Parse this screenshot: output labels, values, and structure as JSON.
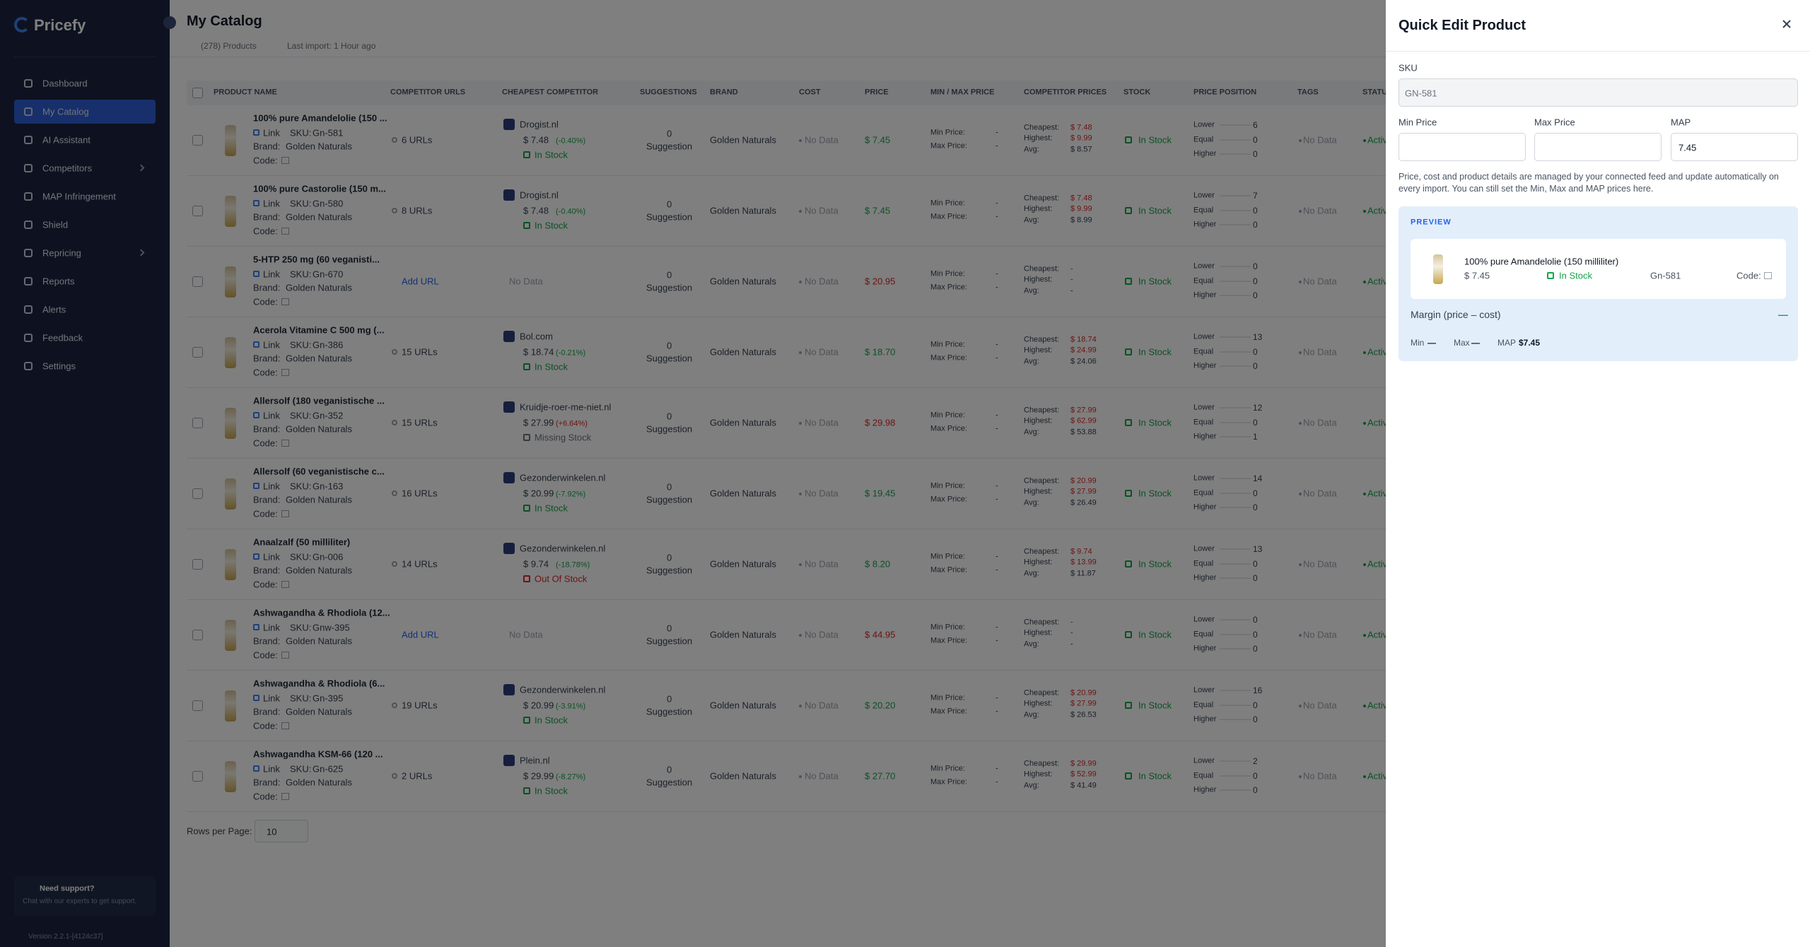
{
  "sidebar": {
    "brand": "Pricefy",
    "nav": [
      {
        "label": "Dashboard"
      },
      {
        "label": "My Catalog",
        "active": true
      },
      {
        "label": "AI Assistant"
      },
      {
        "label": "Competitors",
        "expandable": true
      },
      {
        "label": "MAP Infringement"
      },
      {
        "label": "Shield"
      },
      {
        "label": "Repricing",
        "expandable": true
      },
      {
        "label": "Reports"
      },
      {
        "label": "Alerts"
      },
      {
        "label": "Feedback"
      },
      {
        "label": "Settings"
      }
    ],
    "support_title": "Need support?",
    "support_text": "Chat with our experts to get support.",
    "version": "Version 2.2.1-[4124c37]"
  },
  "header": {
    "title": "My Catalog",
    "products": "(278) Products",
    "last_import": "Last import: 1 Hour ago"
  },
  "table": {
    "columns": [
      "PRODUCT NAME",
      "COMPETITOR URLS",
      "CHEAPEST COMPETITOR",
      "SUGGESTIONS",
      "BRAND",
      "COST",
      "PRICE",
      "MIN / MAX PRICE",
      "COMPETITOR PRICES",
      "STOCK",
      "PRICE POSITION",
      "TAGS",
      "STATUS"
    ],
    "labels": {
      "link": "Link",
      "sku": "SKU:",
      "brand": "Brand:",
      "code": "Code:",
      "suggestion": "Suggestion",
      "no_data": "No Data",
      "min_price": "Min Price:",
      "max_price": "Max Price:",
      "cheapest": "Cheapest:",
      "highest": "Highest:",
      "avg": "Avg:",
      "lower": "Lower",
      "equal": "Equal",
      "higher": "Higher"
    },
    "rows": [
      {
        "name": "100% pure Amandelolie (150 ...",
        "sku": "Gn-581",
        "brand": "Golden Naturals",
        "urls": "6 URLs",
        "competitor": "Drogist.nl",
        "comp_price": "$ 7.48",
        "comp_change": "(-0.40%)",
        "comp_change_color": "#16a34a",
        "comp_stock": "In Stock",
        "comp_stock_color": "#16a34a",
        "suggestions": "0",
        "cost": "No Data",
        "price": "$ 7.45",
        "price_color": "#16a34a",
        "min": "-",
        "max": "-",
        "cheapest": "$ 7.48",
        "highest": "$ 9.99",
        "avg": "$ 8.57",
        "stock": "In Stock",
        "lower": "6",
        "equal": "0",
        "higher": "0",
        "tags": "No Data",
        "status": "Active"
      },
      {
        "name": "100% pure Castorolie (150 m...",
        "sku": "Gn-580",
        "brand": "Golden Naturals",
        "urls": "8 URLs",
        "competitor": "Drogist.nl",
        "comp_price": "$ 7.48",
        "comp_change": "(-0.40%)",
        "comp_change_color": "#16a34a",
        "comp_stock": "In Stock",
        "comp_stock_color": "#16a34a",
        "suggestions": "0",
        "cost": "No Data",
        "price": "$ 7.45",
        "price_color": "#16a34a",
        "min": "-",
        "max": "-",
        "cheapest": "$ 7.48",
        "highest": "$ 9.99",
        "avg": "$ 8.99",
        "stock": "In Stock",
        "lower": "7",
        "equal": "0",
        "higher": "0",
        "tags": "No Data",
        "status": "Active"
      },
      {
        "name": "5-HTP 250 mg (60 veganisti...",
        "sku": "Gn-670",
        "brand": "Golden Naturals",
        "urls": "Add URL",
        "competitor": "No Data",
        "suggestions": "0",
        "cost": "No Data",
        "price": "$ 20.95",
        "price_color": "#dc2626",
        "min": "-",
        "max": "-",
        "cheapest": "-",
        "highest": "-",
        "avg": "-",
        "stock": "In Stock",
        "lower": "0",
        "equal": "0",
        "higher": "0",
        "tags": "No Data",
        "status": "Active"
      },
      {
        "name": "Acerola Vitamine C 500 mg (...",
        "sku": "Gn-386",
        "brand": "Golden Naturals",
        "urls": "15 URLs",
        "competitor": "Bol.com",
        "comp_price": "$ 18.74",
        "comp_change": "(-0.21%)",
        "comp_change_color": "#16a34a",
        "comp_stock": "In Stock",
        "comp_stock_color": "#16a34a",
        "suggestions": "0",
        "cost": "No Data",
        "price": "$ 18.70",
        "price_color": "#16a34a",
        "min": "-",
        "max": "-",
        "cheapest": "$ 18.74",
        "highest": "$ 24.99",
        "avg": "$ 24.06",
        "stock": "In Stock",
        "lower": "13",
        "equal": "0",
        "higher": "0",
        "tags": "No Data",
        "status": "Active"
      },
      {
        "name": "Allersolf (180 veganistische ...",
        "sku": "Gn-352",
        "brand": "Golden Naturals",
        "urls": "15 URLs",
        "competitor": "Kruidje-roer-me-niet.nl",
        "comp_price": "$ 27.99",
        "comp_change": "(+6.64%)",
        "comp_change_color": "#dc2626",
        "comp_stock": "Missing Stock",
        "comp_stock_color": "#6b7280",
        "suggestions": "0",
        "cost": "No Data",
        "price": "$ 29.98",
        "price_color": "#dc2626",
        "min": "-",
        "max": "-",
        "cheapest": "$ 27.99",
        "highest": "$ 62.99",
        "avg": "$ 53.88",
        "stock": "In Stock",
        "lower": "12",
        "equal": "0",
        "higher": "1",
        "tags": "No Data",
        "status": "Active"
      },
      {
        "name": "Allersolf (60 veganistische c...",
        "sku": "Gn-163",
        "brand": "Golden Naturals",
        "urls": "16 URLs",
        "competitor": "Gezonderwinkelen.nl",
        "comp_price": "$ 20.99",
        "comp_change": "(-7.92%)",
        "comp_change_color": "#16a34a",
        "comp_stock": "In Stock",
        "comp_stock_color": "#16a34a",
        "suggestions": "0",
        "cost": "No Data",
        "price": "$ 19.45",
        "price_color": "#16a34a",
        "min": "-",
        "max": "-",
        "cheapest": "$ 20.99",
        "highest": "$ 27.99",
        "avg": "$ 26.49",
        "stock": "In Stock",
        "lower": "14",
        "equal": "0",
        "higher": "0",
        "tags": "No Data",
        "status": "Active"
      },
      {
        "name": "Anaalzalf (50 milliliter)",
        "sku": "Gn-006",
        "brand": "Golden Naturals",
        "urls": "14 URLs",
        "competitor": "Gezonderwinkelen.nl",
        "comp_price": "$ 9.74",
        "comp_change": "(-18.78%)",
        "comp_change_color": "#16a34a",
        "comp_stock": "Out Of Stock",
        "comp_stock_color": "#dc2626",
        "suggestions": "0",
        "cost": "No Data",
        "price": "$ 8.20",
        "price_color": "#16a34a",
        "min": "-",
        "max": "-",
        "cheapest": "$ 9.74",
        "highest": "$ 13.99",
        "avg": "$ 11.87",
        "stock": "In Stock",
        "lower": "13",
        "equal": "0",
        "higher": "0",
        "tags": "No Data",
        "status": "Active"
      },
      {
        "name": "Ashwagandha & Rhodiola (12...",
        "sku": "Gnw-395",
        "brand": "Golden Naturals",
        "urls": "Add URL",
        "competitor": "No Data",
        "suggestions": "0",
        "cost": "No Data",
        "price": "$ 44.95",
        "price_color": "#dc2626",
        "min": "-",
        "max": "-",
        "cheapest": "-",
        "highest": "-",
        "avg": "-",
        "stock": "In Stock",
        "lower": "0",
        "equal": "0",
        "higher": "0",
        "tags": "No Data",
        "status": "Active"
      },
      {
        "name": "Ashwagandha & Rhodiola (6...",
        "sku": "Gn-395",
        "brand": "Golden Naturals",
        "urls": "19 URLs",
        "competitor": "Gezonderwinkelen.nl",
        "comp_price": "$ 20.99",
        "comp_change": "(-3.91%)",
        "comp_change_color": "#16a34a",
        "comp_stock": "In Stock",
        "comp_stock_color": "#16a34a",
        "suggestions": "0",
        "cost": "No Data",
        "price": "$ 20.20",
        "price_color": "#16a34a",
        "min": "-",
        "max": "-",
        "cheapest": "$ 20.99",
        "highest": "$ 27.99",
        "avg": "$ 26.53",
        "stock": "In Stock",
        "lower": "16",
        "equal": "0",
        "higher": "0",
        "tags": "No Data",
        "status": "Active"
      },
      {
        "name": "Ashwagandha KSM-66 (120 ...",
        "sku": "Gn-625",
        "brand": "Golden Naturals",
        "urls": "2 URLs",
        "competitor": "Plein.nl",
        "comp_price": "$ 29.99",
        "comp_change": "(-8.27%)",
        "comp_change_color": "#16a34a",
        "comp_stock": "In Stock",
        "comp_stock_color": "#16a34a",
        "suggestions": "0",
        "cost": "No Data",
        "price": "$ 27.70",
        "price_color": "#16a34a",
        "min": "-",
        "max": "-",
        "cheapest": "$ 29.99",
        "highest": "$ 52.99",
        "avg": "$ 41.49",
        "stock": "In Stock",
        "lower": "2",
        "equal": "0",
        "higher": "0",
        "tags": "No Data",
        "status": "Active"
      }
    ],
    "rows_per_page_label": "Rows per Page:",
    "rows_per_page": "10"
  },
  "panel": {
    "title": "Quick Edit Product",
    "sku_label": "SKU",
    "sku_value": "GN-581",
    "min_label": "Min Price",
    "max_label": "Max Price",
    "map_label": "MAP",
    "map_value": "7.45",
    "note": "Price, cost and product details are managed by your connected feed and update automatically on every import. You can still set the Min, Max and MAP prices here.",
    "preview_label": "PREVIEW",
    "product_name": "100% pure Amandelolie (150 milliliter)",
    "product_price": "$ 7.45",
    "product_stock": "In Stock",
    "product_sku": "Gn-581",
    "product_code_label": "Code:",
    "margin_label": "Margin (price – cost)",
    "margin_value": "—",
    "min_label_short": "Min",
    "min_value": "—",
    "max_label_short": "Max",
    "max_value": "—",
    "map_label_short": "MAP",
    "map_value_short": "$7.45"
  }
}
